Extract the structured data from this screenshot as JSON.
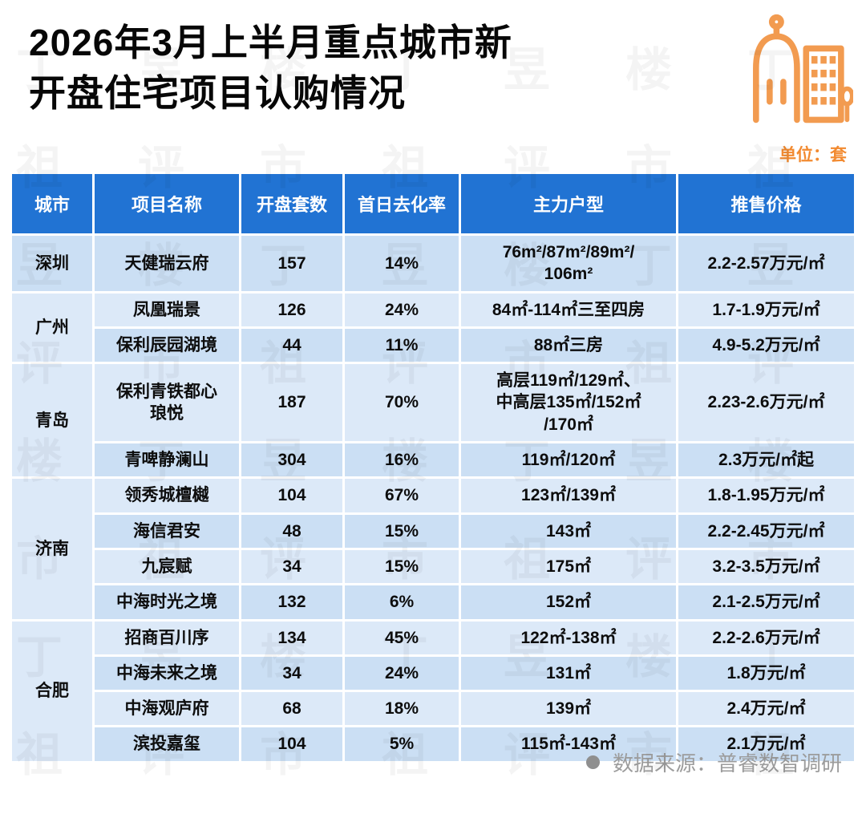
{
  "header": {
    "title": "2026年3月上半月重点城市新\n开盘住宅项目认购情况",
    "unit": "单位：套"
  },
  "chart_data": {
    "type": "table",
    "title": "2026年3月上半月重点城市新开盘住宅项目认购情况",
    "unit": "单位：套",
    "columns": [
      "城市",
      "项目名称",
      "开盘套数",
      "首日去化率",
      "主力户型",
      "推售价格"
    ],
    "city_groups": [
      [
        "深圳",
        1
      ],
      [
        "广州",
        2
      ],
      [
        "青岛",
        2
      ],
      [
        "济南",
        4
      ],
      [
        "合肥",
        4
      ]
    ],
    "rows": [
      [
        "深圳",
        "天健瑞云府",
        "157",
        "14%",
        "76m²/87m²/89m²/\n106m²",
        "2.2-2.57万元/㎡"
      ],
      [
        "广州",
        "凤凰瑞景",
        "126",
        "24%",
        "84㎡-114㎡三至四房",
        "1.7-1.9万元/㎡"
      ],
      [
        "广州",
        "保利辰园湖境",
        "44",
        "11%",
        "88㎡三房",
        "4.9-5.2万元/㎡"
      ],
      [
        "青岛",
        "保利青铁都心\n琅悦",
        "187",
        "70%",
        "高层119㎡/129㎡、\n中高层135㎡/152㎡\n/170㎡",
        "2.23-2.6万元/㎡"
      ],
      [
        "青岛",
        "青啤静澜山",
        "304",
        "16%",
        "119㎡/120㎡",
        "2.3万元/㎡起"
      ],
      [
        "济南",
        "领秀城檀樾",
        "104",
        "67%",
        "123㎡/139㎡",
        "1.8-1.95万元/㎡"
      ],
      [
        "济南",
        "海信君安",
        "48",
        "15%",
        "143㎡",
        "2.2-2.45万元/㎡"
      ],
      [
        "济南",
        "九宸赋",
        "34",
        "15%",
        "175㎡",
        "3.2-3.5万元/㎡"
      ],
      [
        "济南",
        "中海时光之境",
        "132",
        "6%",
        "152㎡",
        "2.1-2.5万元/㎡"
      ],
      [
        "合肥",
        "招商百川序",
        "134",
        "45%",
        "122㎡-138㎡",
        "2.2-2.6万元/㎡"
      ],
      [
        "合肥",
        "中海未来之境",
        "34",
        "24%",
        "131㎡",
        "1.8万元/㎡"
      ],
      [
        "合肥",
        "中海观庐府",
        "68",
        "18%",
        "139㎡",
        "2.4万元/㎡"
      ],
      [
        "合肥",
        "滨投嘉玺",
        "104",
        "5%",
        "115㎡-143㎡",
        "2.1万元/㎡"
      ]
    ]
  },
  "footer": {
    "source": "数据来源：普睿数智调研"
  },
  "watermark": "丁祖昱评楼市",
  "colors": {
    "header_blue": "#2173D3",
    "row_dark": "#CBDFF4",
    "row_light": "#DCE9F8",
    "city_cell": "#D3E4F6",
    "accent_orange": "#F29B50",
    "unit_orange": "#F28A30",
    "source_gray": "#9C9C9C"
  }
}
